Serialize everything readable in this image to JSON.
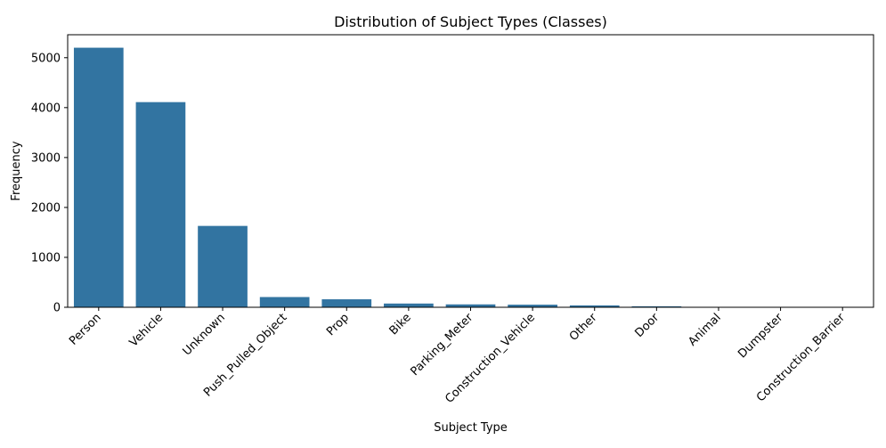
{
  "chart_data": {
    "type": "bar",
    "title": "Distribution of Subject Types (Classes)",
    "xlabel": "Subject Type",
    "ylabel": "Frequency",
    "categories": [
      "Person",
      "Vehicle",
      "Unknown",
      "Push_Pulled_Object",
      "Prop",
      "Bike",
      "Parking_Meter",
      "Construction_Vehicle",
      "Other",
      "Door",
      "Animal",
      "Dumpster",
      "Construction_Barrier"
    ],
    "values": [
      5200,
      4110,
      1630,
      205,
      160,
      75,
      58,
      52,
      38,
      20,
      4,
      3,
      2
    ],
    "ylim": [
      0,
      5460
    ],
    "yticks": [
      0,
      1000,
      2000,
      3000,
      4000,
      5000
    ],
    "bar_color": "#3274a1",
    "grid": false,
    "legend": "none"
  }
}
